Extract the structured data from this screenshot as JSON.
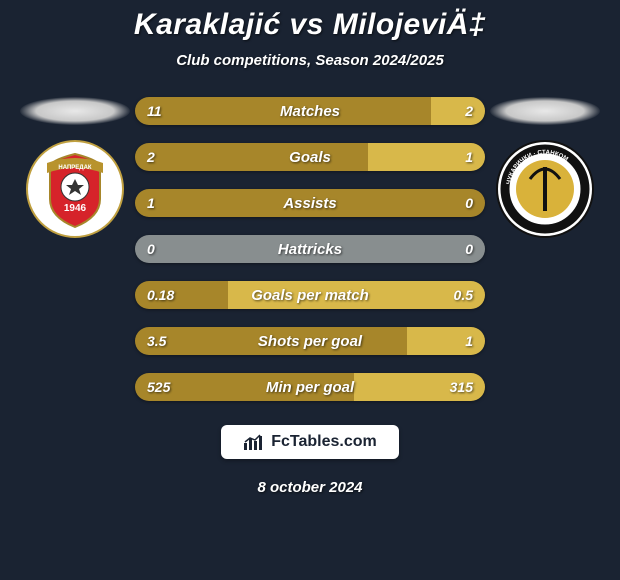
{
  "header": {
    "title": "Karaklajić vs MilojeviÄ‡",
    "subtitle": "Club competitions, Season 2024/2025"
  },
  "left_crest": {
    "circle_fill": "#ffffff",
    "shield_fill": "#d6232a",
    "shield_stroke": "#a7862a",
    "banner_fill": "#b8932d",
    "banner_text": "НАПРЕДАК",
    "year": "1946"
  },
  "right_crest": {
    "circle_fill": "#ffffff",
    "ring_stroke": "#111111",
    "inner_fill": "#d9b23a",
    "ring_text": "ЧУКАРИЧКИ · СТАНКОМ"
  },
  "bars": {
    "left_color": "#a7862a",
    "right_color": "#d8b84a",
    "neutral_color": "#888e8f",
    "rows": [
      {
        "label": "Matches",
        "left": "11",
        "right": "2",
        "left_pct": 84.6,
        "right_pct": 15.4
      },
      {
        "label": "Goals",
        "left": "2",
        "right": "1",
        "left_pct": 66.7,
        "right_pct": 33.3
      },
      {
        "label": "Assists",
        "left": "1",
        "right": "0",
        "left_pct": 100,
        "right_pct": 0
      },
      {
        "label": "Hattricks",
        "left": "0",
        "right": "0",
        "left_pct": 50,
        "right_pct": 50,
        "neutral": true
      },
      {
        "label": "Goals per match",
        "left": "0.18",
        "right": "0.5",
        "left_pct": 26.5,
        "right_pct": 73.5
      },
      {
        "label": "Shots per goal",
        "left": "3.5",
        "right": "1",
        "left_pct": 77.8,
        "right_pct": 22.2
      },
      {
        "label": "Min per goal",
        "left": "525",
        "right": "315",
        "left_pct": 62.5,
        "right_pct": 37.5
      }
    ]
  },
  "brand": {
    "text": "FcTables.com"
  },
  "footer": {
    "date": "8 october 2024"
  }
}
